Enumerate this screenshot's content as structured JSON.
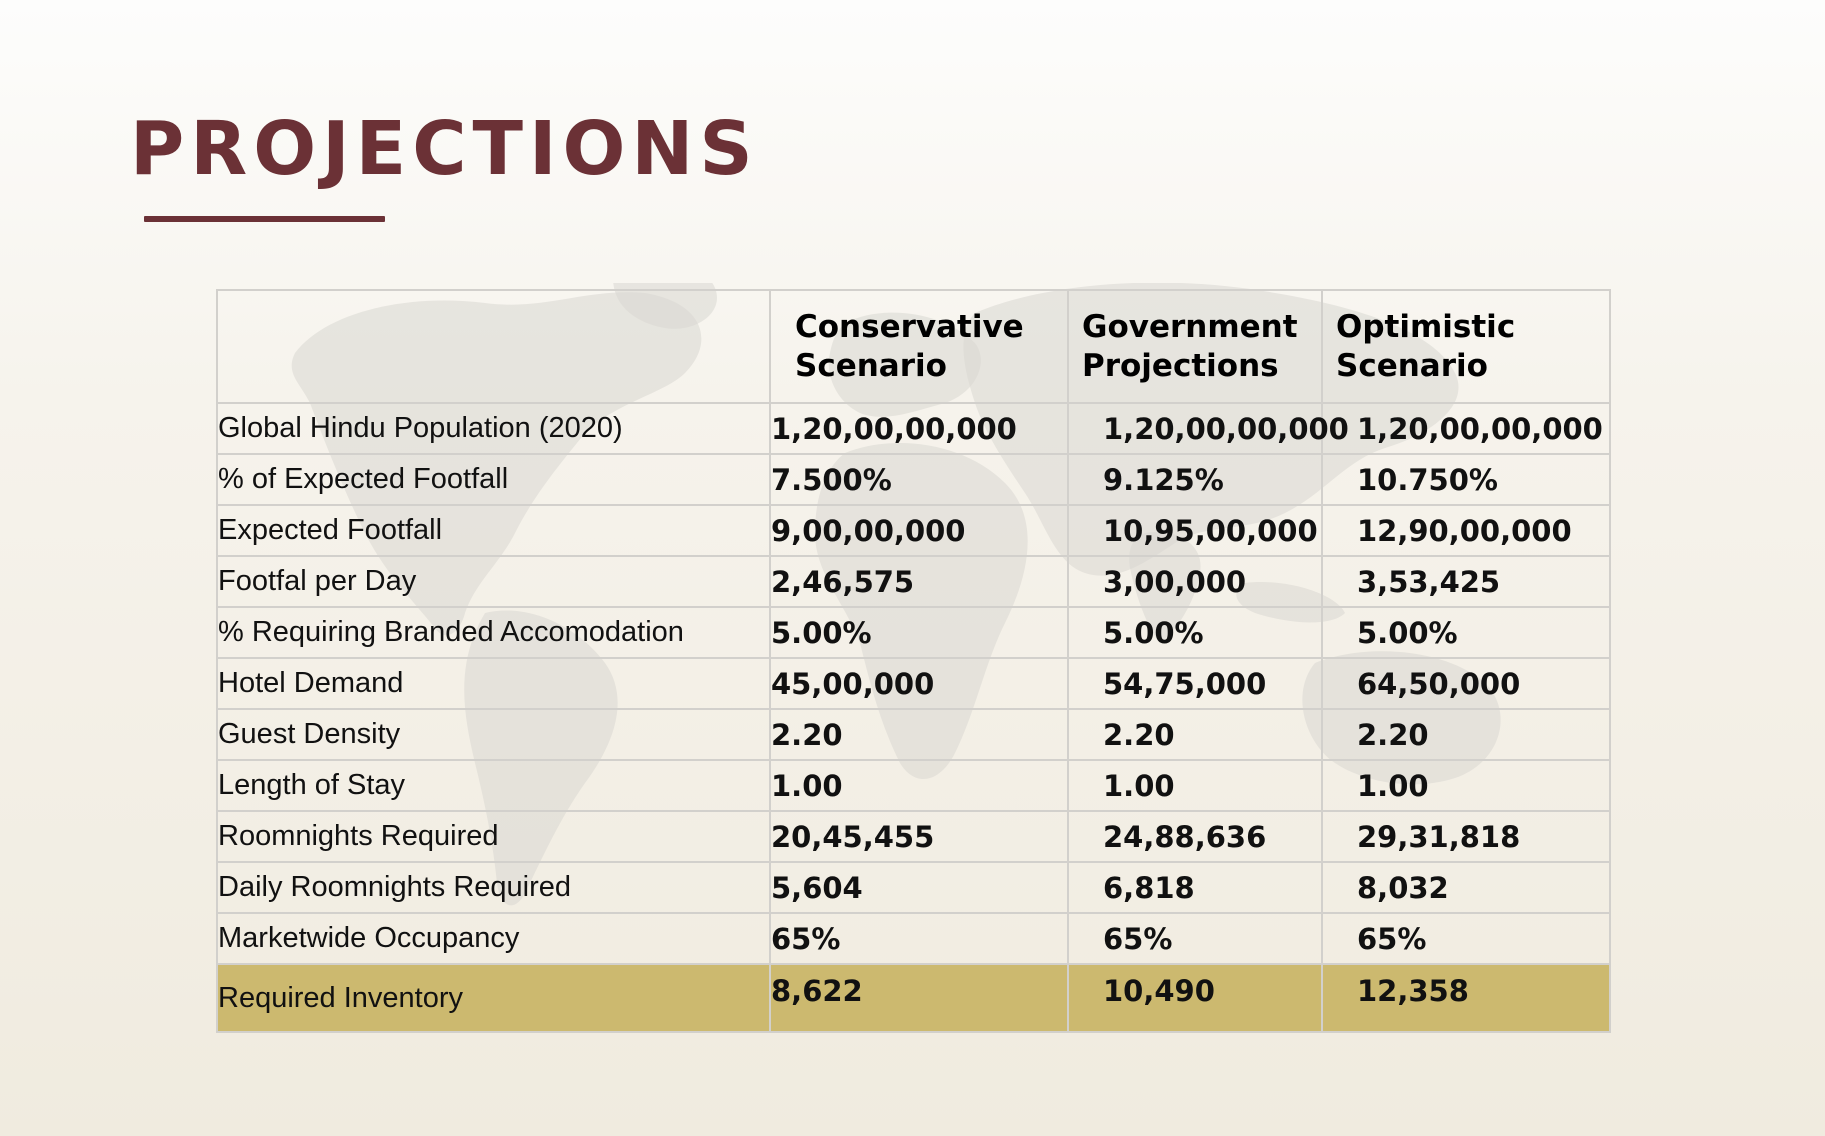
{
  "page": {
    "title": "PROJECTIONS"
  },
  "table": {
    "columns": [
      "",
      "Conservative Scenario",
      "Government Projections",
      "Optimistic Scenario"
    ],
    "rows": [
      {
        "label": "Global Hindu Population (2020)",
        "values": [
          "1,20,00,00,000",
          "1,20,00,00,000",
          "1,20,00,00,000"
        ]
      },
      {
        "label": "% of Expected Footfall",
        "values": [
          "7.500%",
          "9.125%",
          "10.750%"
        ]
      },
      {
        "label": "Expected Footfall",
        "values": [
          "9,00,00,000",
          "10,95,00,000",
          "12,90,00,000"
        ]
      },
      {
        "label": "Footfal per Day",
        "values": [
          "2,46,575",
          "3,00,000",
          "3,53,425"
        ]
      },
      {
        "label": "% Requiring Branded Accomodation",
        "values": [
          "5.00%",
          "5.00%",
          "5.00%"
        ]
      },
      {
        "label": "Hotel Demand",
        "values": [
          "45,00,000",
          "54,75,000",
          "64,50,000"
        ]
      },
      {
        "label": "Guest Density",
        "values": [
          "2.20",
          "2.20",
          "2.20"
        ]
      },
      {
        "label": "Length of Stay",
        "values": [
          "1.00",
          "1.00",
          "1.00"
        ]
      },
      {
        "label": "Roomnights Required",
        "values": [
          "20,45,455",
          "24,88,636",
          "29,31,818"
        ]
      },
      {
        "label": "Daily Roomnights Required",
        "values": [
          "5,604",
          "6,818",
          "8,032"
        ]
      },
      {
        "label": "Marketwide Occupancy",
        "values": [
          "65%",
          "65%",
          "65%"
        ]
      },
      {
        "label": "Required Inventory",
        "values": [
          "8,622",
          "10,490",
          "12,358"
        ]
      }
    ]
  },
  "colors": {
    "title": "#6b3136",
    "highlight_row": "#ccb96f",
    "grid": "#d2d0cc"
  },
  "background": {
    "decoration": "world-map-icon"
  }
}
